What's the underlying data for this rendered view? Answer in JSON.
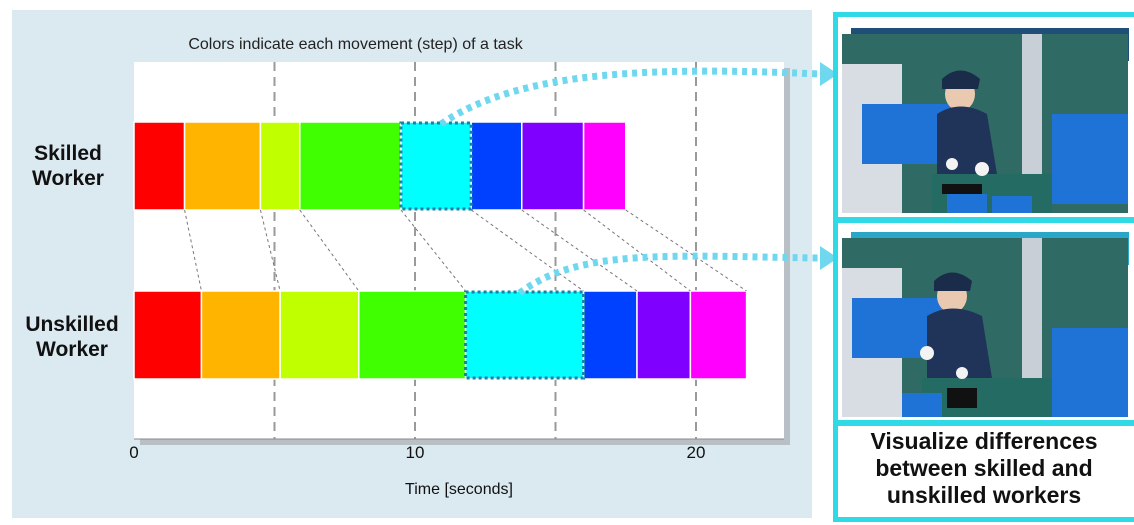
{
  "chart_data": {
    "type": "bar",
    "subtype": "stacked-horizontal-timeline",
    "title": "Colors indicate each movement (step) of a task",
    "xlabel": "Time [seconds]",
    "xlim": [
      0,
      23
    ],
    "xticks": [
      0,
      10,
      20
    ],
    "grid": "vertical dashed at 5-second intervals",
    "step_colors": [
      "#ff0000",
      "#ffb400",
      "#bfff00",
      "#40ff00",
      "#00ffff",
      "#0040ff",
      "#8000ff",
      "#ff00ff"
    ],
    "highlighted_step": 4,
    "series": [
      {
        "name": "Skilled Worker",
        "steps": [
          [
            0,
            1.8
          ],
          [
            1.8,
            4.5
          ],
          [
            4.5,
            5.9
          ],
          [
            5.9,
            9.5
          ],
          [
            9.5,
            12.0
          ],
          [
            12.0,
            13.8
          ],
          [
            13.8,
            16.0
          ],
          [
            16.0,
            17.5
          ]
        ]
      },
      {
        "name": "Unskilled Worker",
        "steps": [
          [
            0,
            2.4
          ],
          [
            2.4,
            5.2
          ],
          [
            5.2,
            8.0
          ],
          [
            8.0,
            11.8
          ],
          [
            11.8,
            16.0
          ],
          [
            16.0,
            17.9
          ],
          [
            17.9,
            19.8
          ],
          [
            19.8,
            21.8
          ]
        ]
      }
    ]
  },
  "labels": {
    "skilled": "Skilled\nWorker",
    "unskilled": "Unskilled\nWorker"
  },
  "videos": {
    "skilled_title": "Skilled Worker",
    "unskilled_title": "Unskilled Worker",
    "skilled_color": "#1f4e79",
    "unskilled_color": "#2aa6c8"
  },
  "caption": "Visualize differences between skilled and unskilled workers",
  "colors": {
    "accent": "#2fd9e6",
    "panel": "#dbe9f1"
  }
}
